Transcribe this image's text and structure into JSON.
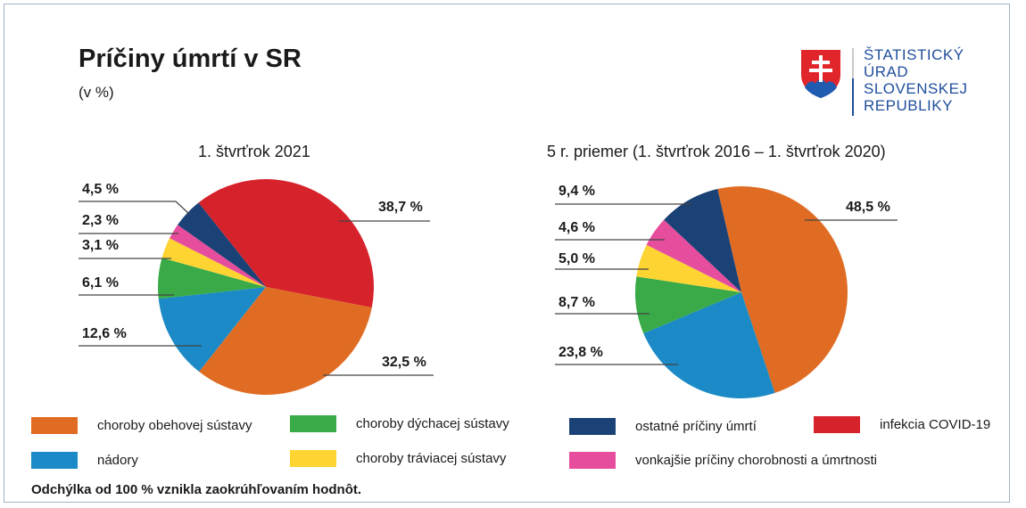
{
  "title": "Príčiny úmrtí v SR",
  "unit": "(v %)",
  "logo": {
    "lines": [
      "ŠTATISTICKÝ",
      "ÚRAD",
      "SLOVENSKEJ",
      "REPUBLIKY"
    ]
  },
  "colors": {
    "obehova": "#e06c24",
    "nadory": "#1b8ac6",
    "dychacia": "#3aaa48",
    "traviaca": "#fdd432",
    "ostatne": "#1b4276",
    "vonkajsie": "#e64d9c",
    "covid": "#d6222b"
  },
  "chart_data": [
    {
      "type": "pie",
      "title": "1. štvrťrok 2021",
      "slices": [
        {
          "name": "infekcia COVID-19",
          "key": "covid",
          "value": 38.7,
          "label": "38,7 %"
        },
        {
          "name": "choroby obehovej sústavy",
          "key": "obehova",
          "value": 32.5,
          "label": "32,5 %"
        },
        {
          "name": "nádory",
          "key": "nadory",
          "value": 12.6,
          "label": "12,6 %"
        },
        {
          "name": "choroby dýchacej sústavy",
          "key": "dychacia",
          "value": 6.1,
          "label": "6,1 %"
        },
        {
          "name": "choroby tráviacej sústavy",
          "key": "traviaca",
          "value": 3.1,
          "label": "3,1 %"
        },
        {
          "name": "vonkajšie príčiny chorobnosti a úmrtnosti",
          "key": "vonkajsie",
          "value": 2.3,
          "label": "2,3 %"
        },
        {
          "name": "ostatné príčiny úmrtí",
          "key": "ostatne",
          "value": 4.5,
          "label": "4,5 %"
        }
      ]
    },
    {
      "type": "pie",
      "title": "5 r. priemer (1. štvrťrok 2016 – 1. štvrťrok 2020)",
      "slices": [
        {
          "name": "choroby obehovej sústavy",
          "key": "obehova",
          "value": 48.5,
          "label": "48,5 %"
        },
        {
          "name": "nádory",
          "key": "nadory",
          "value": 23.8,
          "label": "23,8 %"
        },
        {
          "name": "choroby dýchacej sústavy",
          "key": "dychacia",
          "value": 8.7,
          "label": "8,7 %"
        },
        {
          "name": "choroby tráviacej sústavy",
          "key": "traviaca",
          "value": 5.0,
          "label": "5,0 %"
        },
        {
          "name": "vonkajšie príčiny chorobnosti a úmrtnosti",
          "key": "vonkajsie",
          "value": 4.6,
          "label": "4,6 %"
        },
        {
          "name": "ostatné príčiny úmrtí",
          "key": "ostatne",
          "value": 9.4,
          "label": "9,4 %"
        }
      ]
    }
  ],
  "legend": [
    {
      "key": "obehova",
      "label": "choroby obehovej sústavy"
    },
    {
      "key": "dychacia",
      "label": "choroby dýchacej sústavy"
    },
    {
      "key": "ostatne",
      "label": "ostatné príčiny úmrtí"
    },
    {
      "key": "covid",
      "label": "infekcia COVID-19"
    },
    {
      "key": "nadory",
      "label": "nádory"
    },
    {
      "key": "traviaca",
      "label": "choroby tráviacej sústavy"
    },
    {
      "key": "vonkajsie",
      "label": "vonkajšie príčiny chorobnosti a úmrtnosti"
    }
  ],
  "note": "Odchýlka od 100 % vznikla zaokrúhľovaním hodnôt."
}
